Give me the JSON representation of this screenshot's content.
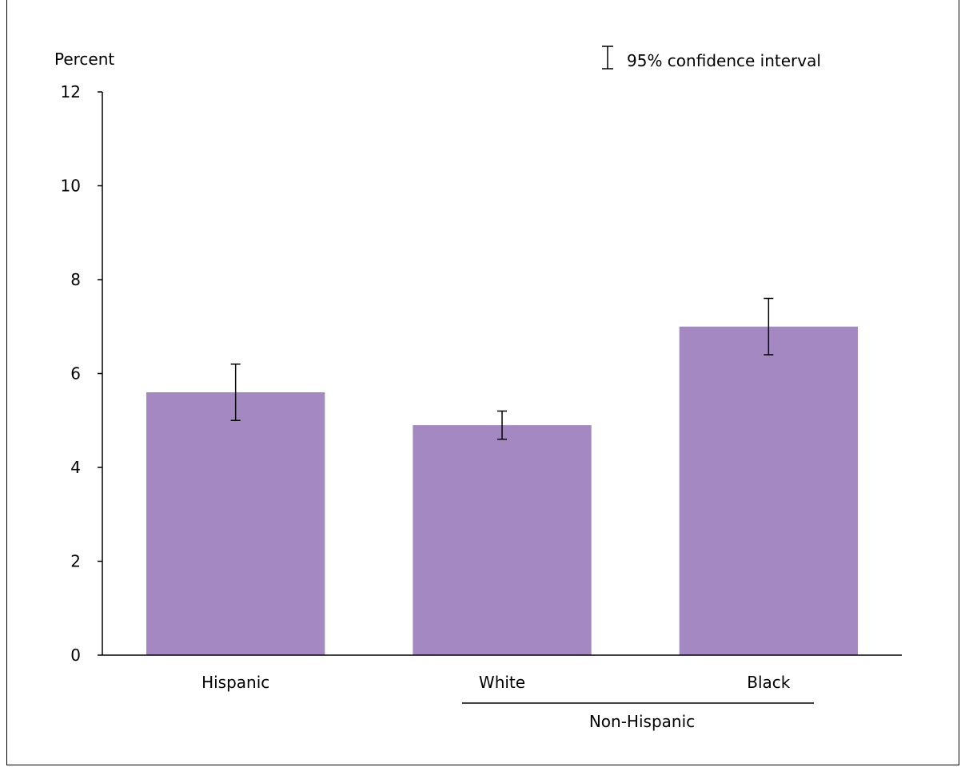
{
  "chart_data": {
    "type": "bar",
    "categories": [
      "Hispanic",
      "White",
      "Black"
    ],
    "values": [
      5.6,
      4.9,
      7.0
    ],
    "error_low": [
      5.0,
      4.6,
      6.4
    ],
    "error_high": [
      6.2,
      5.2,
      7.6
    ],
    "ylabel": "Percent",
    "ylim": [
      0,
      12
    ],
    "yticks": [
      0,
      2,
      4,
      6,
      8,
      10,
      12
    ],
    "group_label": "Non-Hispanic",
    "legend_label": "95% confidence interval",
    "bar_color": "#a488c1",
    "grid": false,
    "legend_position": "top-right"
  }
}
